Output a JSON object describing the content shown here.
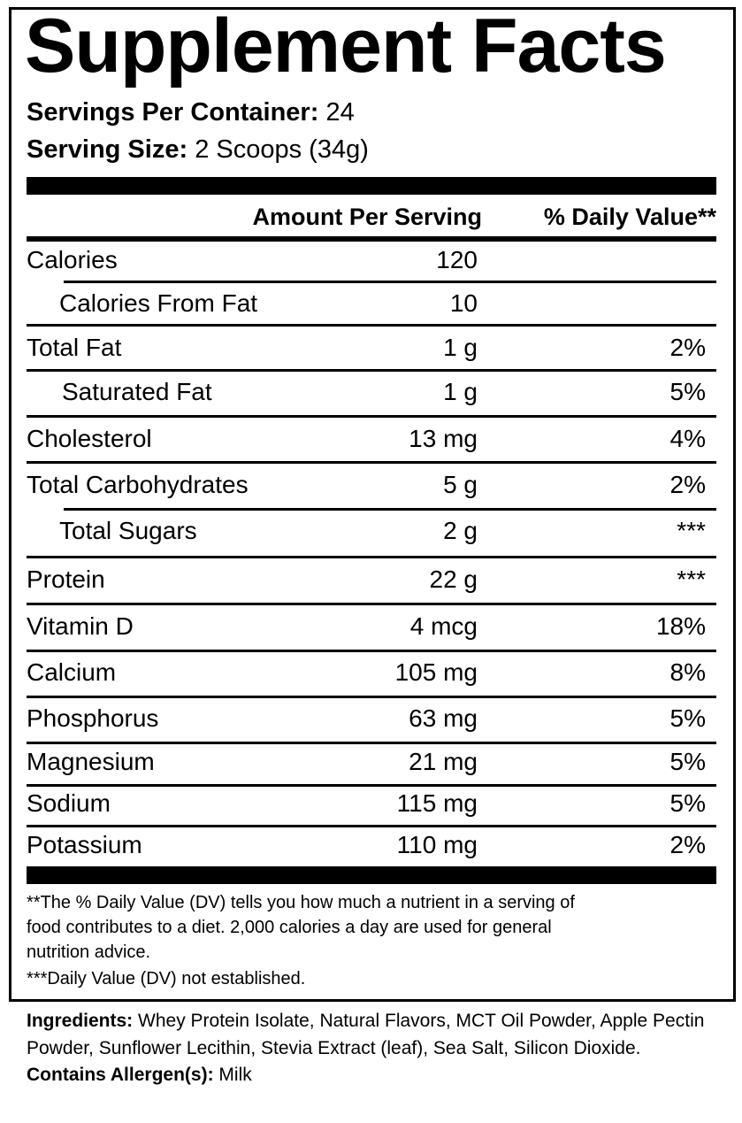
{
  "title": "Supplement Facts",
  "servings_per_container": {
    "label": "Servings Per Container:",
    "value": "24"
  },
  "serving_size": {
    "label": "Serving Size:",
    "value": "2 Scoops (34g)"
  },
  "columns": {
    "amount": "Amount Per Serving",
    "dv": "% Daily Value**"
  },
  "rows": [
    {
      "name": "Calories",
      "amount": "120",
      "dv": ""
    },
    {
      "name": "Calories From Fat",
      "amount": "10",
      "dv": ""
    },
    {
      "name": "Total Fat",
      "amount": "1 g",
      "dv": "2%"
    },
    {
      "name": "Saturated Fat",
      "amount": "1 g",
      "dv": "5%"
    },
    {
      "name": "Cholesterol",
      "amount": "13 mg",
      "dv": "4%"
    },
    {
      "name": "Total Carbohydrates",
      "amount": "5 g",
      "dv": "2%"
    },
    {
      "name": "Total Sugars",
      "amount": "2 g",
      "dv": "***"
    },
    {
      "name": "Protein",
      "amount": "22 g",
      "dv": "***"
    },
    {
      "name": "Vitamin D",
      "amount": "4 mcg",
      "dv": "18%"
    },
    {
      "name": "Calcium",
      "amount": "105 mg",
      "dv": "8%"
    },
    {
      "name": "Phosphorus",
      "amount": "63 mg",
      "dv": "5%"
    },
    {
      "name": "Magnesium",
      "amount": "21 mg",
      "dv": "5%"
    },
    {
      "name": "Sodium",
      "amount": "115 mg",
      "dv": "5%"
    },
    {
      "name": "Potassium",
      "amount": "110 mg",
      "dv": "2%"
    }
  ],
  "footnotes": [
    "**The % Daily Value (DV) tells you how much a nutrient in a serving of",
    "food contributes to a diet. 2,000 calories a day are used for general",
    "nutrition advice.",
    "***Daily Value (DV) not established."
  ],
  "ingredients": {
    "label": "Ingredients:",
    "text": "Whey Protein Isolate, Natural Flavors, MCT Oil Powder, Apple Pectin Powder, Sunflower Lecithin, Stevia Extract (leaf), Sea Salt, Silicon Dioxide."
  },
  "allergens": {
    "label": "Contains Allergen(s):",
    "text": "Milk"
  }
}
